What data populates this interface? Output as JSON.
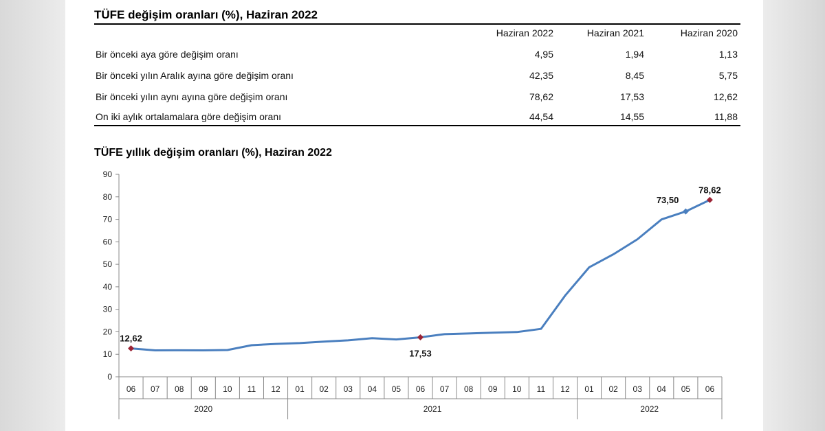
{
  "table": {
    "title": "TÜFE değişim oranları (%), Haziran 2022",
    "columns": [
      "Haziran 2022",
      "Haziran 2021",
      "Haziran 2020"
    ],
    "rows": [
      {
        "label": "Bir önceki aya göre değişim oranı",
        "values": [
          "4,95",
          "1,94",
          "1,13"
        ]
      },
      {
        "label": "Bir önceki yılın Aralık ayına göre değişim oranı",
        "values": [
          "42,35",
          "8,45",
          "5,75"
        ]
      },
      {
        "label": "Bir önceki yılın aynı ayına göre değişim oranı",
        "values": [
          "78,62",
          "17,53",
          "12,62"
        ]
      },
      {
        "label": "On iki aylık ortalamalara göre değişim oranı",
        "values": [
          "44,54",
          "14,55",
          "11,88"
        ]
      }
    ]
  },
  "chart_data": {
    "type": "line",
    "title": "TÜFE yıllık değişim oranları (%), Haziran 2022",
    "ylim": [
      0,
      90
    ],
    "yticks": [
      "0",
      "10",
      "20",
      "30",
      "40",
      "50",
      "60",
      "70",
      "80",
      "90"
    ],
    "categories": [
      "06",
      "07",
      "08",
      "09",
      "10",
      "11",
      "12",
      "01",
      "02",
      "03",
      "04",
      "05",
      "06",
      "07",
      "08",
      "09",
      "10",
      "11",
      "12",
      "01",
      "02",
      "03",
      "04",
      "05",
      "06"
    ],
    "year_groups": [
      {
        "label": "2020",
        "start": 0,
        "end": 6
      },
      {
        "label": "2021",
        "start": 7,
        "end": 18
      },
      {
        "label": "2022",
        "start": 19,
        "end": 24
      }
    ],
    "series": [
      {
        "values": [
          12.62,
          11.76,
          11.77,
          11.75,
          11.89,
          14.03,
          14.6,
          14.97,
          15.61,
          16.19,
          17.14,
          16.59,
          17.53,
          18.95,
          19.25,
          19.58,
          19.89,
          21.31,
          36.08,
          48.69,
          54.44,
          61.14,
          69.97,
          73.5,
          78.62
        ],
        "color": "#4a7fbf",
        "marked": [
          {
            "index": 0,
            "label": "12,62",
            "color": "#9b2335",
            "label_pos": "above"
          },
          {
            "index": 12,
            "label": "17,53",
            "color": "#9b2335",
            "label_pos": "below"
          },
          {
            "index": 23,
            "label": "73,50",
            "color": "#4a7fbf",
            "label_pos": "above-left"
          },
          {
            "index": 24,
            "label": "78,62",
            "color": "#9b2335",
            "label_pos": "above"
          }
        ]
      }
    ],
    "grid": false
  }
}
